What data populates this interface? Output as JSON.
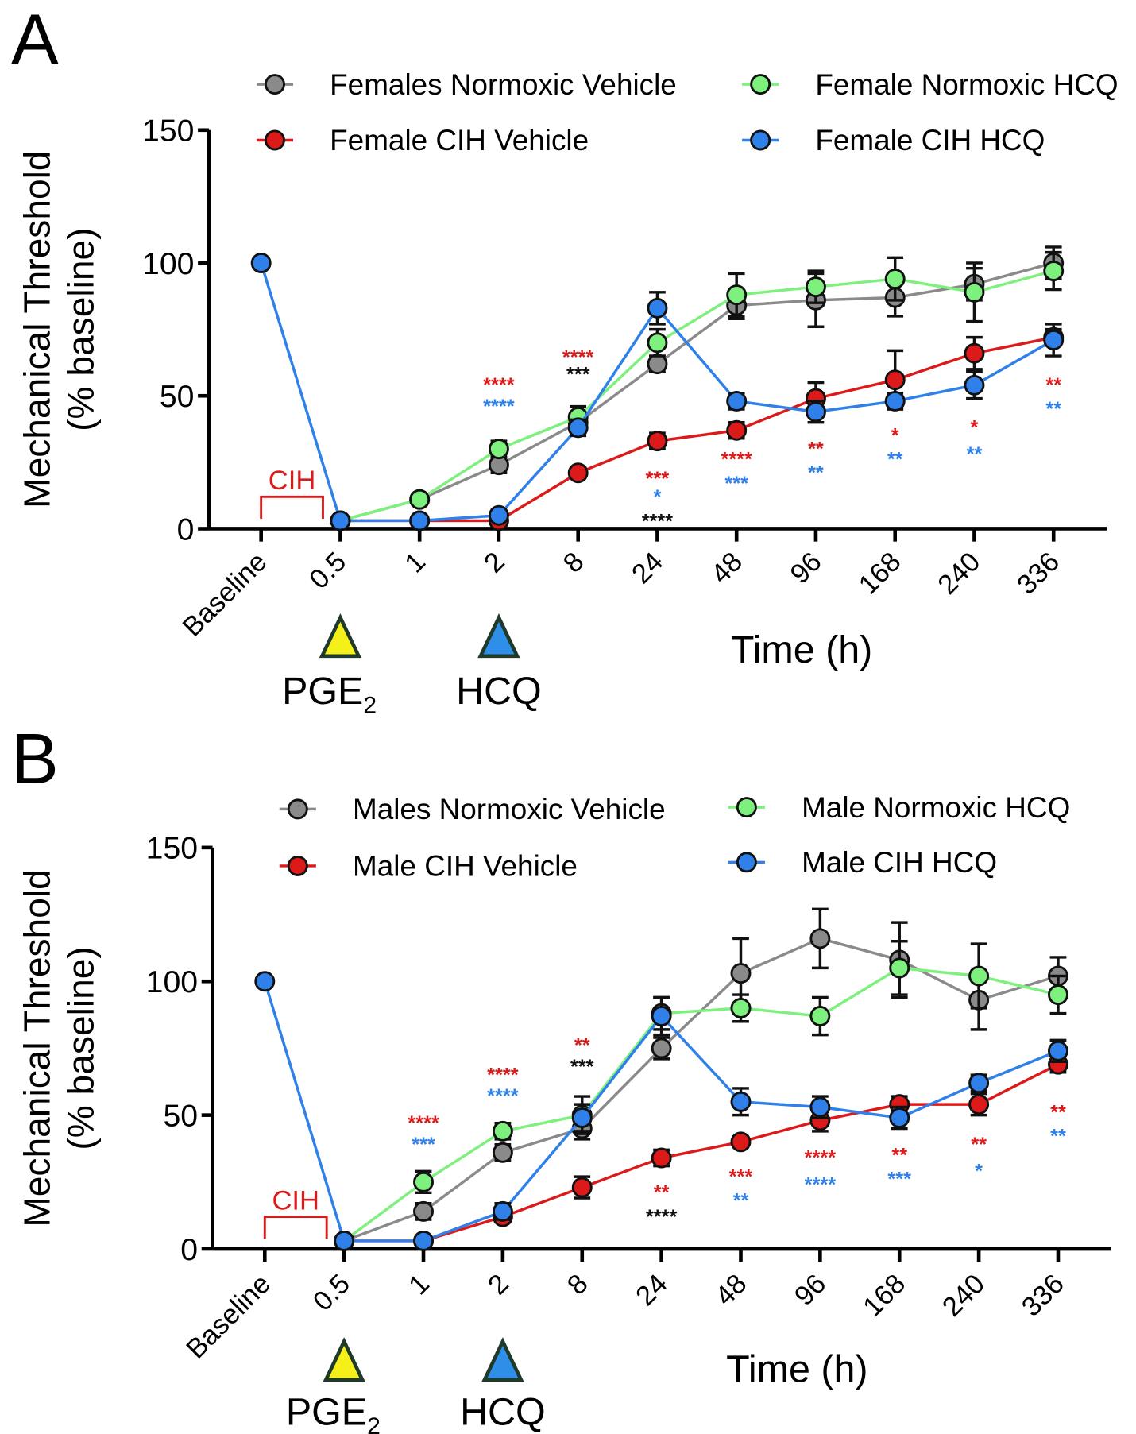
{
  "colors": {
    "normoxic_vehicle": "#8a8a8a",
    "normoxic_hcq": "#7ef07e",
    "cih_vehicle": "#dd1a1a",
    "cih_hcq": "#2f80e8",
    "pge2_marker": "#f5f01a",
    "hcq_marker": "#2f8ee8",
    "cih_bracket": "#dd1a1a"
  },
  "chart_data": [
    {
      "type": "line",
      "panel_label": "A",
      "categories": [
        "Baseline",
        "0.5",
        "1",
        "2",
        "8",
        "24",
        "48",
        "96",
        "168",
        "240",
        "336"
      ],
      "xlabel": "Time (h)",
      "ylabel": "Mechanical Threshold",
      "ylabel2": "(% baseline)",
      "ylim": [
        0,
        150
      ],
      "yticks": [
        "0",
        "50",
        "100",
        "150"
      ],
      "legend": "top",
      "cih_label": "CIH",
      "markers": [
        {
          "label": "PGE",
          "sub": "2",
          "at": "0.5",
          "color": "pge2_marker"
        },
        {
          "label": "HCQ",
          "sub": "",
          "at": "2",
          "color": "hcq_marker"
        }
      ],
      "series": [
        {
          "name": "Females Normoxic Vehicle",
          "color": "normoxic_vehicle",
          "values": [
            null,
            3,
            11,
            24,
            40,
            62,
            84,
            86,
            87,
            92,
            100
          ],
          "errors": [
            null,
            1,
            2,
            3,
            4,
            3,
            5,
            10,
            7,
            6,
            6
          ]
        },
        {
          "name": "Female Normoxic HCQ",
          "color": "normoxic_hcq",
          "values": [
            null,
            3,
            11,
            30,
            42,
            70,
            88,
            91,
            94,
            89,
            97
          ],
          "errors": [
            null,
            1,
            2,
            3,
            4,
            5,
            8,
            6,
            8,
            11,
            7
          ]
        },
        {
          "name": "Female CIH Vehicle",
          "color": "cih_vehicle",
          "values": [
            null,
            3,
            3,
            3,
            21,
            33,
            37,
            49,
            56,
            66,
            72
          ],
          "errors": [
            null,
            1,
            1,
            1,
            2,
            3,
            3,
            6,
            11,
            6,
            3
          ]
        },
        {
          "name": "Female CIH HCQ",
          "color": "cih_hcq",
          "values": [
            100,
            3,
            3,
            5,
            38,
            83,
            48,
            44,
            48,
            54,
            71
          ],
          "errors": [
            0,
            1,
            1,
            2,
            3,
            6,
            3,
            4,
            3,
            5,
            6
          ]
        }
      ],
      "annotations": [
        {
          "x": "2",
          "y": 55,
          "text": "****",
          "color": "cih_vehicle"
        },
        {
          "x": "2",
          "y": 47,
          "text": "****",
          "color": "cih_hcq"
        },
        {
          "x": "8",
          "y": 65.5,
          "text": "****",
          "color": "cih_vehicle"
        },
        {
          "x": "8",
          "y": 59,
          "text": "***",
          "color": "black"
        },
        {
          "x": "24",
          "y": 19.7,
          "text": "***",
          "color": "cih_vehicle"
        },
        {
          "x": "24",
          "y": 12.8,
          "text": "*",
          "color": "cih_hcq"
        },
        {
          "x": "24",
          "y": 3.8,
          "text": "****",
          "color": "black"
        },
        {
          "x": "48",
          "y": 27,
          "text": "****",
          "color": "cih_vehicle"
        },
        {
          "x": "48",
          "y": 18,
          "text": "***",
          "color": "cih_hcq"
        },
        {
          "x": "96",
          "y": 31,
          "text": "**",
          "color": "cih_vehicle"
        },
        {
          "x": "96",
          "y": 22,
          "text": "**",
          "color": "cih_hcq"
        },
        {
          "x": "168",
          "y": 36,
          "text": "*",
          "color": "cih_vehicle"
        },
        {
          "x": "168",
          "y": 27,
          "text": "**",
          "color": "cih_hcq"
        },
        {
          "x": "240",
          "y": 39,
          "text": "*",
          "color": "cih_vehicle"
        },
        {
          "x": "240",
          "y": 29,
          "text": "**",
          "color": "cih_hcq"
        },
        {
          "x": "336",
          "y": 55,
          "text": "**",
          "color": "cih_vehicle"
        },
        {
          "x": "336",
          "y": 46,
          "text": "**",
          "color": "cih_hcq"
        }
      ]
    },
    {
      "type": "line",
      "panel_label": "B",
      "categories": [
        "Baseline",
        "0.5",
        "1",
        "2",
        "8",
        "24",
        "48",
        "96",
        "168",
        "240",
        "336"
      ],
      "xlabel": "Time (h)",
      "ylabel": "Mechanical Threshold",
      "ylabel2": "(% baseline)",
      "ylim": [
        0,
        150
      ],
      "yticks": [
        "0",
        "50",
        "100",
        "150"
      ],
      "legend": "top",
      "cih_label": "CIH",
      "markers": [
        {
          "label": "PGE",
          "sub": "2",
          "at": "0.5",
          "color": "pge2_marker"
        },
        {
          "label": "HCQ",
          "sub": "",
          "at": "2",
          "color": "hcq_marker"
        }
      ],
      "series": [
        {
          "name": "Males Normoxic Vehicle",
          "color": "normoxic_vehicle",
          "values": [
            null,
            3,
            14,
            36,
            45,
            75,
            103,
            116,
            108,
            93,
            102
          ],
          "errors": [
            null,
            1,
            3,
            3,
            4,
            4,
            13,
            11,
            14,
            11,
            7
          ]
        },
        {
          "name": "Male Normoxic HCQ",
          "color": "normoxic_hcq",
          "values": [
            null,
            3,
            25,
            44,
            50,
            88,
            90,
            87,
            105,
            102,
            95
          ],
          "errors": [
            null,
            1,
            4,
            3,
            7,
            6,
            5,
            7,
            10,
            12,
            7
          ]
        },
        {
          "name": "Male CIH Vehicle",
          "color": "cih_vehicle",
          "values": [
            null,
            3,
            3,
            12,
            23,
            34,
            40,
            48,
            54,
            54,
            69
          ],
          "errors": [
            null,
            1,
            1,
            2,
            4,
            3,
            2,
            4,
            3,
            4,
            3
          ]
        },
        {
          "name": "Male CIH HCQ",
          "color": "cih_hcq",
          "values": [
            100,
            3,
            3,
            14,
            49,
            87,
            55,
            53,
            49,
            62,
            74
          ],
          "errors": [
            0,
            1,
            1,
            3,
            5,
            7,
            5,
            4,
            4,
            3,
            4
          ]
        }
      ],
      "annotations": [
        {
          "x": "1",
          "y": 48,
          "text": "****",
          "color": "cih_vehicle"
        },
        {
          "x": "1",
          "y": 40,
          "text": "***",
          "color": "cih_hcq"
        },
        {
          "x": "2",
          "y": 66,
          "text": "****",
          "color": "cih_vehicle"
        },
        {
          "x": "2",
          "y": 58,
          "text": "****",
          "color": "cih_hcq"
        },
        {
          "x": "8",
          "y": 77,
          "text": "**",
          "color": "cih_vehicle"
        },
        {
          "x": "8",
          "y": 69,
          "text": "***",
          "color": "black"
        },
        {
          "x": "24",
          "y": 22,
          "text": "**",
          "color": "cih_vehicle"
        },
        {
          "x": "24",
          "y": 13,
          "text": "****",
          "color": "black"
        },
        {
          "x": "48",
          "y": 28,
          "text": "***",
          "color": "cih_vehicle"
        },
        {
          "x": "48",
          "y": 19,
          "text": "**",
          "color": "cih_hcq"
        },
        {
          "x": "96",
          "y": 35,
          "text": "****",
          "color": "cih_vehicle"
        },
        {
          "x": "96",
          "y": 25,
          "text": "****",
          "color": "cih_hcq"
        },
        {
          "x": "168",
          "y": 36,
          "text": "**",
          "color": "cih_vehicle"
        },
        {
          "x": "168",
          "y": 27,
          "text": "***",
          "color": "cih_hcq"
        },
        {
          "x": "240",
          "y": 40,
          "text": "**",
          "color": "cih_vehicle"
        },
        {
          "x": "240",
          "y": 30,
          "text": "*",
          "color": "cih_hcq"
        },
        {
          "x": "336",
          "y": 52,
          "text": "**",
          "color": "cih_vehicle"
        },
        {
          "x": "336",
          "y": 43,
          "text": "**",
          "color": "cih_hcq"
        }
      ]
    }
  ]
}
